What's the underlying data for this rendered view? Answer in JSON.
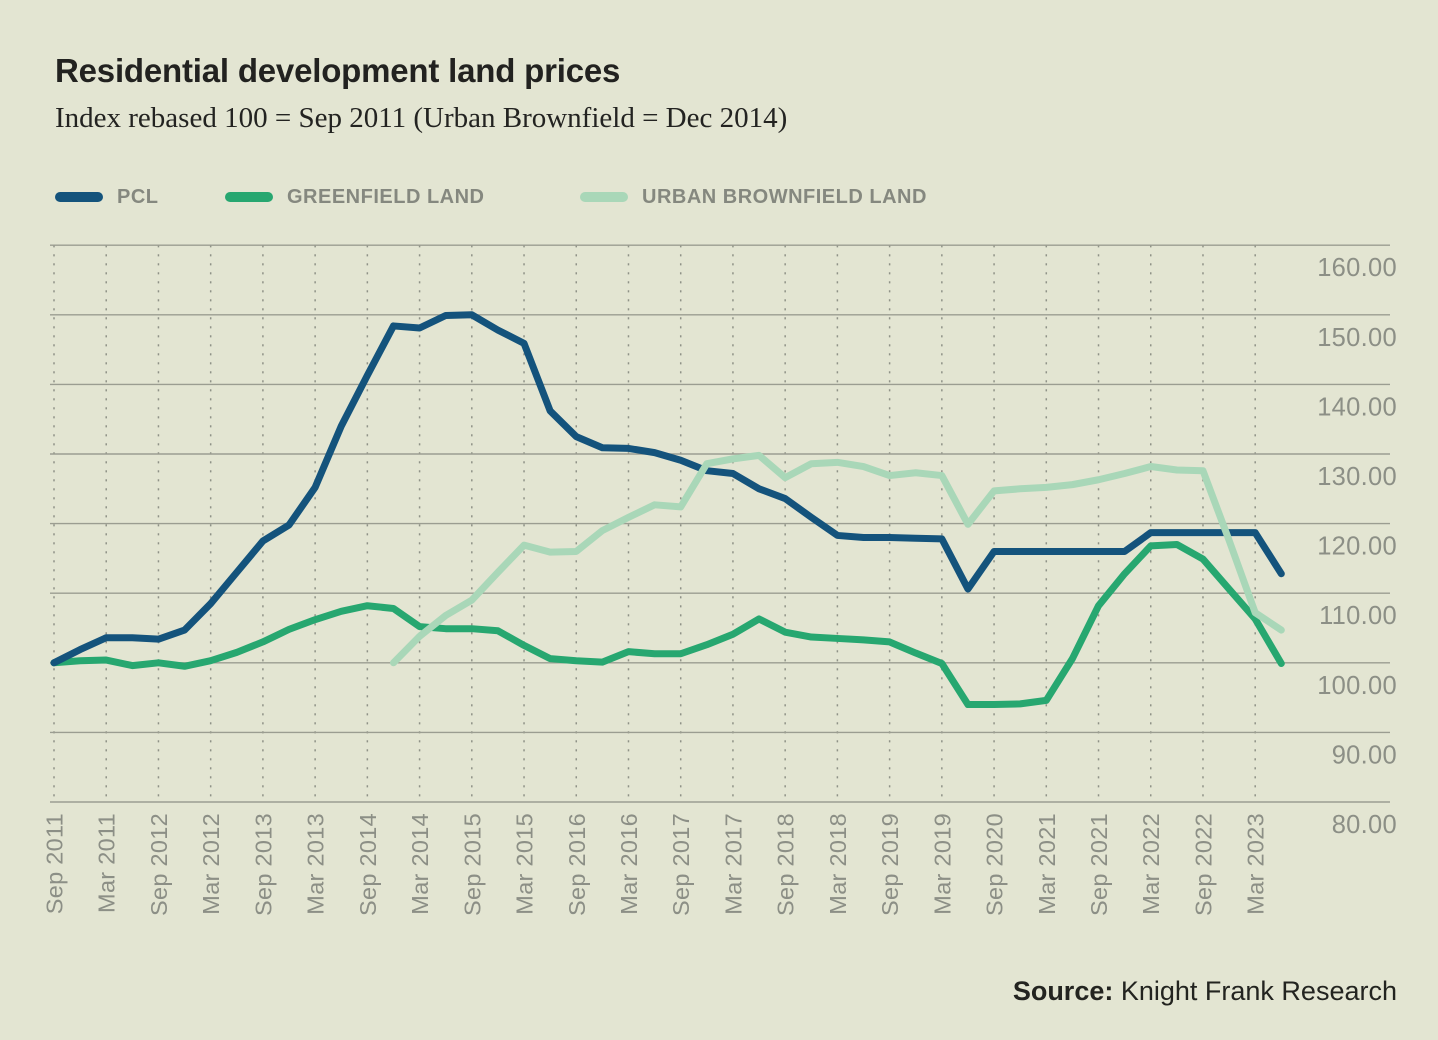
{
  "header": {
    "title": "Residential development land prices",
    "subtitle": "Index rebased 100 = Sep 2011 (Urban Brownfield = Dec 2014)"
  },
  "legend": {
    "items": [
      {
        "label": "PCL",
        "color": "#14537c"
      },
      {
        "label": "GREENFIELD LAND",
        "color": "#27a770"
      },
      {
        "label": "URBAN BROWNFIELD LAND",
        "color": "#a9d7b8"
      }
    ]
  },
  "source": {
    "label": "Source:",
    "text": "Knight Frank Research"
  },
  "colors": {
    "background": "#e3e5d2",
    "gridline": "#9b9d91",
    "dotted_gridline": "#8f9287",
    "tick_text": "#8c8f86",
    "title_text": "#222220",
    "legend_text": "#85887f",
    "source_text": "#232420"
  },
  "chart_data": {
    "type": "line",
    "title": "Residential development land prices",
    "subtitle": "Index rebased 100 = Sep 2011 (Urban Brownfield = Dec 2014)",
    "ylim": [
      80,
      160
    ],
    "ytick_step": 10,
    "ytick_labels": [
      "160.00",
      "150.00",
      "140.00",
      "130.00",
      "120.00",
      "110.00",
      "100.00",
      "90.00",
      "80.00"
    ],
    "x_tick_labels": [
      "Sep 2011",
      "Mar 2011",
      "Sep 2012",
      "Mar 2012",
      "Sep 2013",
      "Mar 2013",
      "Sep 2014",
      "Mar 2014",
      "Sep 2015",
      "Mar 2015",
      "Sep 2016",
      "Mar 2016",
      "Sep 2017",
      "Mar 2017",
      "Sep 2018",
      "Mar 2018",
      "Sep 2019",
      "Mar 2019",
      "Sep 2020",
      "Mar 2021",
      "Sep 2021",
      "Mar 2022",
      "Sep 2022",
      "Mar 2023"
    ],
    "points_per_tick": 2,
    "x_note": "Series are quarterly; every second point carries a tick label and one unlabeled quarter follows the final tick.",
    "grid": "horizontal solid lines, vertical dotted lines at each tick",
    "legend_position": "top-left",
    "series": [
      {
        "name": "PCL",
        "color": "#14537c",
        "values": [
          100,
          101.9,
          103.6,
          103.6,
          103.4,
          104.7,
          108.5,
          113,
          117.5,
          119.8,
          125.2,
          134,
          141.3,
          148.4,
          148.1,
          149.9,
          150,
          147.8,
          145.9,
          136.2,
          132.5,
          130.9,
          130.8,
          130.2,
          129.1,
          127.6,
          127.2,
          125,
          123.6,
          120.9,
          118.3,
          118,
          118,
          117.9,
          117.8,
          110.6,
          116,
          116,
          116,
          116,
          116,
          116,
          118.7,
          118.7,
          118.7,
          118.7,
          118.7,
          112.8
        ]
      },
      {
        "name": "GREENFIELD LAND",
        "color": "#27a770",
        "values": [
          100,
          100.3,
          100.4,
          99.6,
          100,
          99.5,
          100.3,
          101.5,
          103,
          104.8,
          106.2,
          107.4,
          108.2,
          107.8,
          105.2,
          104.9,
          104.9,
          104.6,
          102.5,
          100.6,
          100.3,
          100.1,
          101.6,
          101.3,
          101.3,
          102.6,
          104.1,
          106.3,
          104.4,
          103.7,
          103.5,
          103.3,
          103,
          101.4,
          99.9,
          94,
          94,
          94.1,
          94.6,
          100.6,
          108.2,
          112.8,
          116.8,
          117,
          114.9,
          110.6,
          106.3,
          99.9
        ]
      },
      {
        "name": "URBAN BROWNFIELD LAND",
        "color": "#a9d7b8",
        "values": [
          null,
          null,
          null,
          null,
          null,
          null,
          null,
          null,
          null,
          null,
          null,
          null,
          null,
          100,
          103.8,
          106.8,
          109,
          113,
          116.9,
          115.9,
          116,
          119,
          120.9,
          122.7,
          122.4,
          128.6,
          129.3,
          129.8,
          126.6,
          128.6,
          128.8,
          128.2,
          126.9,
          127.3,
          126.9,
          119.9,
          124.7,
          125,
          125.2,
          125.6,
          126.3,
          127.2,
          128.2,
          127.7,
          127.6,
          117.6,
          107.2,
          104.7
        ]
      }
    ]
  }
}
